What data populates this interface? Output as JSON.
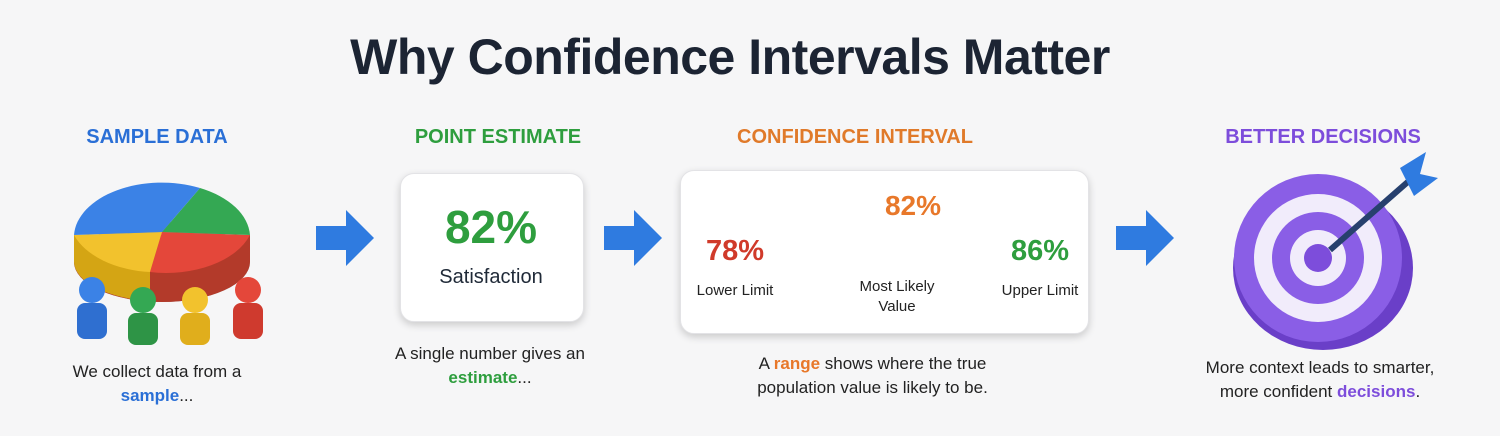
{
  "title": "Why Confidence Intervals Matter",
  "steps": [
    {
      "heading": "SAMPLE DATA",
      "caption": [
        "We collect data from a ",
        "sample",
        "..."
      ]
    },
    {
      "heading": "POINT ESTIMATE",
      "value": "82%",
      "label": "Satisfaction",
      "caption": [
        "A single number gives an ",
        "estimate",
        "..."
      ]
    },
    {
      "heading": "CONFIDENCE INTERVAL",
      "center_value": "82%",
      "lower_value": "78%",
      "lower_label": "Lower Limit",
      "center_label": "Most Likely Value",
      "upper_value": "86%",
      "upper_label": "Upper Limit",
      "caption": [
        "A ",
        "range",
        " shows where the true population value is likely to be."
      ]
    },
    {
      "heading": "BETTER DECISIONS",
      "caption": [
        "More context leads to smarter, more confident ",
        "decisions",
        "."
      ]
    }
  ]
}
